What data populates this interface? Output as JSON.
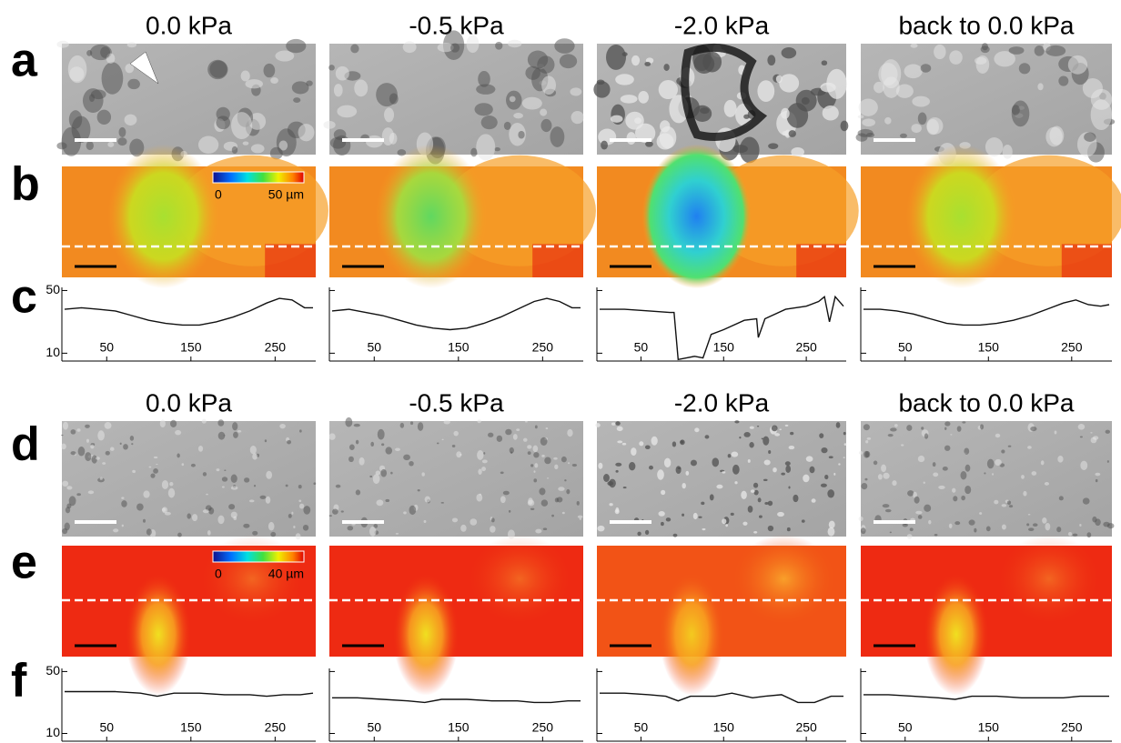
{
  "panel_labels": [
    "a",
    "b",
    "c",
    "d",
    "e",
    "f"
  ],
  "columns": [
    "0.0 kPa",
    "-0.5 kPa",
    "-2.0 kPa",
    "back to 0.0 kPa"
  ],
  "colorbars": [
    {
      "min": "0",
      "max": "50 µm"
    },
    {
      "min": "0",
      "max": "40 µm"
    }
  ],
  "profiles": [
    {
      "xlim": [
        0,
        295
      ],
      "ylim": [
        5,
        52
      ],
      "xticks": [
        50,
        150,
        250
      ],
      "yticks": [
        10,
        50
      ],
      "lines": [
        {
          "x": [
            0,
            20,
            40,
            60,
            80,
            100,
            120,
            140,
            160,
            180,
            200,
            220,
            240,
            255,
            270,
            285,
            295
          ],
          "values": [
            38,
            39,
            38,
            37,
            34,
            31,
            29,
            28,
            28,
            30,
            33,
            37,
            42,
            45,
            44,
            39,
            39
          ]
        },
        {
          "x": [
            0,
            20,
            40,
            60,
            80,
            100,
            120,
            140,
            160,
            180,
            200,
            220,
            240,
            255,
            270,
            285,
            295
          ],
          "values": [
            37,
            38,
            36,
            34,
            31,
            28,
            26,
            25,
            26,
            29,
            33,
            38,
            43,
            45,
            43,
            39,
            39
          ]
        },
        {
          "x": [
            0,
            30,
            60,
            85,
            90,
            95,
            105,
            115,
            125,
            135,
            150,
            175,
            190,
            192,
            200,
            225,
            250,
            265,
            272,
            278,
            285,
            295
          ],
          "values": [
            38,
            38,
            37,
            36,
            36,
            6,
            7,
            8,
            7,
            22,
            25,
            31,
            32,
            20,
            32,
            38,
            40,
            43,
            46,
            30,
            46,
            40
          ]
        },
        {
          "x": [
            0,
            20,
            40,
            60,
            80,
            100,
            120,
            140,
            160,
            180,
            200,
            220,
            240,
            255,
            270,
            285,
            295
          ],
          "values": [
            38,
            38,
            37,
            35,
            32,
            29,
            28,
            28,
            29,
            31,
            34,
            38,
            42,
            44,
            41,
            40,
            41
          ]
        }
      ]
    },
    {
      "xlim": [
        0,
        295
      ],
      "ylim": [
        5,
        52
      ],
      "xticks": [
        50,
        150,
        250
      ],
      "yticks": [
        10,
        50
      ],
      "lines": [
        {
          "x": [
            0,
            30,
            60,
            90,
            110,
            130,
            160,
            190,
            220,
            240,
            260,
            280,
            295
          ],
          "values": [
            37,
            37,
            37,
            36,
            34,
            36,
            36,
            35,
            35,
            34,
            35,
            35,
            36
          ]
        },
        {
          "x": [
            0,
            30,
            60,
            90,
            110,
            130,
            160,
            190,
            220,
            240,
            260,
            280,
            295
          ],
          "values": [
            33,
            33,
            32,
            31,
            30,
            32,
            32,
            31,
            31,
            30,
            30,
            31,
            31
          ]
        },
        {
          "x": [
            0,
            30,
            60,
            80,
            95,
            110,
            140,
            160,
            185,
            200,
            220,
            240,
            260,
            280,
            295
          ],
          "values": [
            36,
            36,
            35,
            34,
            31,
            34,
            34,
            36,
            33,
            34,
            35,
            30,
            30,
            34,
            34
          ]
        },
        {
          "x": [
            0,
            30,
            60,
            90,
            110,
            130,
            160,
            190,
            220,
            240,
            260,
            280,
            295
          ],
          "values": [
            35,
            35,
            34,
            33,
            32,
            34,
            34,
            33,
            33,
            33,
            34,
            34,
            34
          ]
        }
      ]
    }
  ]
}
